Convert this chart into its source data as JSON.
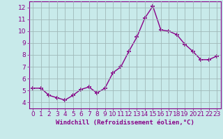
{
  "x": [
    0,
    1,
    2,
    3,
    4,
    5,
    6,
    7,
    8,
    9,
    10,
    11,
    12,
    13,
    14,
    15,
    16,
    17,
    18,
    19,
    20,
    21,
    22,
    23
  ],
  "y": [
    5.2,
    5.2,
    4.6,
    4.4,
    4.2,
    4.6,
    5.1,
    5.3,
    4.8,
    5.2,
    6.5,
    7.0,
    8.3,
    9.5,
    11.1,
    12.1,
    10.1,
    10.0,
    9.7,
    8.9,
    8.3,
    7.6,
    7.6,
    7.9
  ],
  "line_color": "#880088",
  "marker": "+",
  "marker_size": 4,
  "line_width": 1.0,
  "xlabel": "Windchill (Refroidissement éolien,°C)",
  "xlim": [
    -0.5,
    23.5
  ],
  "ylim": [
    3.5,
    12.5
  ],
  "yticks": [
    4,
    5,
    6,
    7,
    8,
    9,
    10,
    11,
    12
  ],
  "xticks": [
    0,
    1,
    2,
    3,
    4,
    5,
    6,
    7,
    8,
    9,
    10,
    11,
    12,
    13,
    14,
    15,
    16,
    17,
    18,
    19,
    20,
    21,
    22,
    23
  ],
  "background_color": "#c8eaea",
  "grid_color": "#a0b8b8",
  "tick_color": "#880088",
  "label_color": "#880088",
  "font_size_xlabel": 6.5,
  "font_size_ticks": 6.5
}
